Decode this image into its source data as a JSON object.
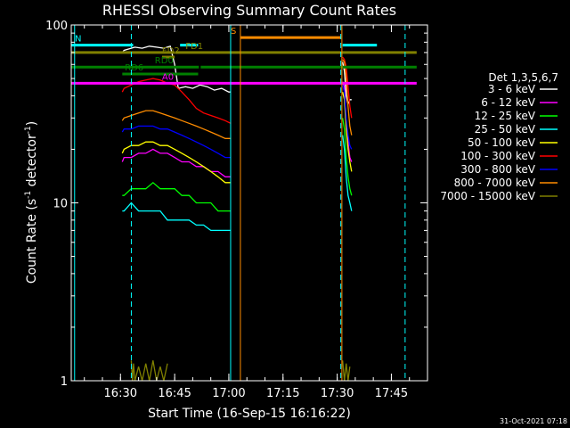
{
  "chart_data": {
    "type": "line",
    "title": "RHESSI Observing Summary Count Rates",
    "xlabel": "Start Time (16-Sep-15 16:16:22)",
    "ylabel_main": "Count Rate (s",
    "ylabel_sup1": "-1",
    "ylabel_mid": " detector",
    "ylabel_sup2": "-1",
    "ylabel_end": ")",
    "timestamp": "31-Oct-2021 07:18",
    "x_start_minutes": 976.37,
    "xlim_minutes": [
      976.37,
      1075
    ],
    "ylim": [
      1,
      100
    ],
    "y_scale": "log",
    "x_ticks": [
      {
        "label": "16:30",
        "minutes": 990
      },
      {
        "label": "16:45",
        "minutes": 1005
      },
      {
        "label": "17:00",
        "minutes": 1020
      },
      {
        "label": "17:15",
        "minutes": 1035
      },
      {
        "label": "17:30",
        "minutes": 1050
      },
      {
        "label": "17:45",
        "minutes": 1065
      }
    ],
    "y_ticks": [
      {
        "label": "1",
        "value": 1
      },
      {
        "label": "10",
        "value": 10
      },
      {
        "label": "100",
        "value": 100
      }
    ],
    "legend_title": "Det 1,3,5,6,7",
    "legend_placement": "right",
    "series": [
      {
        "name": "3 - 6 keV",
        "color": "#ffffff",
        "segments": [
          {
            "x": [
              990.5,
              991,
              992,
              994,
              996,
              998,
              1000,
              1002,
              1003.8,
              1005,
              1006,
              1008,
              1010,
              1012,
              1014,
              1016,
              1018,
              1020,
              1020.5
            ],
            "y": [
              70,
              72,
              73,
              75,
              74,
              76,
              75,
              74,
              76,
              60,
              44,
              45,
              44,
              46,
              45,
              43,
              44,
              42,
              42
            ]
          },
          {
            "x": [
              1051.5,
              1052,
              1052.5,
              1053,
              1053.5,
              1054
            ],
            "y": [
              62,
              55,
              40,
              36,
              38,
              38
            ]
          }
        ]
      },
      {
        "name": "6 - 12 keV",
        "color": "#ff00ff",
        "segments": [
          {
            "x": [
              990.5,
              991,
              993,
              995,
              997,
              999,
              1001,
              1003,
              1005,
              1007,
              1009,
              1011,
              1013,
              1015,
              1017,
              1019,
              1020.5
            ],
            "y": [
              17,
              18,
              18,
              19,
              19,
              20,
              19,
              19,
              18,
              17,
              17,
              16,
              16,
              15,
              15,
              14,
              14
            ]
          },
          {
            "x": [
              1051.5,
              1052,
              1052.5,
              1053,
              1053.5,
              1054
            ],
            "y": [
              48,
              45,
              30,
              22,
              18,
              17
            ]
          }
        ]
      },
      {
        "name": "12 - 25 keV",
        "color": "#00ff00",
        "segments": [
          {
            "x": [
              990.5,
              991,
              993,
              995,
              997,
              999,
              1001,
              1003,
              1005,
              1007,
              1009,
              1011,
              1013,
              1015,
              1017,
              1019,
              1020.5
            ],
            "y": [
              11,
              11,
              12,
              12,
              12,
              13,
              12,
              12,
              12,
              11,
              11,
              10,
              10,
              10,
              9,
              9,
              9
            ]
          },
          {
            "x": [
              1051.5,
              1052,
              1052.5,
              1053,
              1053.5,
              1054
            ],
            "y": [
              30,
              26,
              18,
              14,
              12,
              11
            ]
          }
        ]
      },
      {
        "name": "25 - 50 keV",
        "color": "#00ffff",
        "segments": [
          {
            "x": [
              990.5,
              991,
              993,
              995,
              997,
              999,
              1001,
              1003,
              1005,
              1007,
              1009,
              1011,
              1013,
              1015,
              1017,
              1019,
              1020.5
            ],
            "y": [
              9,
              9,
              10,
              9,
              9,
              9,
              9,
              8,
              8,
              8,
              8,
              7.5,
              7.5,
              7,
              7,
              7,
              7
            ]
          },
          {
            "x": [
              1051.5,
              1052,
              1052.5,
              1053,
              1053.5,
              1054
            ],
            "y": [
              24,
              20,
              14,
              11,
              10,
              9
            ]
          }
        ]
      },
      {
        "name": "50 - 100 keV",
        "color": "#ffff00",
        "segments": [
          {
            "x": [
              990.5,
              991,
              993,
              995,
              997,
              999,
              1001,
              1003,
              1005,
              1007,
              1009,
              1011,
              1013,
              1015,
              1017,
              1019,
              1020.5
            ],
            "y": [
              19,
              20,
              21,
              21,
              22,
              22,
              21,
              21,
              20,
              19,
              18,
              17,
              16,
              15,
              14,
              13,
              13
            ]
          },
          {
            "x": [
              1051.5,
              1052,
              1052.5,
              1053,
              1053.5,
              1054
            ],
            "y": [
              42,
              38,
              26,
              20,
              17,
              15
            ]
          }
        ]
      },
      {
        "name": "100 - 300 keV",
        "color": "#ff0000",
        "segments": [
          {
            "x": [
              990.5,
              991,
              993,
              995,
              997,
              999,
              1001,
              1003,
              1005,
              1007,
              1009,
              1011,
              1013,
              1015,
              1017,
              1019,
              1020.5
            ],
            "y": [
              42,
              44,
              46,
              48,
              49,
              50,
              49,
              47,
              46,
              42,
              38,
              34,
              32,
              31,
              30,
              29,
              28
            ]
          },
          {
            "x": [
              1051.5,
              1052,
              1052.5,
              1053,
              1053.5,
              1054
            ],
            "y": [
              66,
              64,
              58,
              45,
              35,
              30
            ]
          }
        ]
      },
      {
        "name": "300 - 800 keV",
        "color": "#0000ff",
        "segments": [
          {
            "x": [
              990.5,
              991,
              993,
              995,
              997,
              999,
              1001,
              1003,
              1005,
              1007,
              1009,
              1011,
              1013,
              1015,
              1017,
              1019,
              1020.5
            ],
            "y": [
              25,
              26,
              26,
              27,
              27,
              27,
              26,
              26,
              25,
              24,
              23,
              22,
              21,
              20,
              19,
              18,
              18
            ]
          },
          {
            "x": [
              1051.5,
              1052,
              1052.5,
              1053,
              1053.5,
              1054
            ],
            "y": [
              46,
              42,
              30,
              24,
              21,
              20
            ]
          }
        ]
      },
      {
        "name": "800 - 7000 keV",
        "color": "#ff8c00",
        "segments": [
          {
            "x": [
              990.5,
              991,
              993,
              995,
              997,
              999,
              1001,
              1003,
              1005,
              1007,
              1009,
              1011,
              1013,
              1015,
              1017,
              1019,
              1020.5
            ],
            "y": [
              29,
              30,
              31,
              32,
              33,
              33,
              32,
              31,
              30,
              29,
              28,
              27,
              26,
              25,
              24,
              23,
              23
            ]
          },
          {
            "x": [
              1051.5,
              1052,
              1052.5,
              1053,
              1053.5,
              1054
            ],
            "y": [
              64,
              62,
              50,
              35,
              27,
              24
            ]
          }
        ]
      },
      {
        "name": "7000 - 15000 keV",
        "color": "#808000",
        "segments": [
          {
            "x": [
              993,
              993.3,
              993.6,
              994,
              995,
              996,
              997,
              998,
              999,
              1000,
              1001,
              1002,
              1003
            ],
            "y": [
              1.3,
              1.0,
              1.25,
              1.0,
              1.2,
              1.0,
              1.25,
              1.0,
              1.3,
              1.0,
              1.2,
              1.0,
              1.25
            ]
          },
          {
            "x": [
              1051.5,
              1052,
              1052.5,
              1053,
              1053.5
            ],
            "y": [
              1.3,
              1.0,
              1.25,
              1.0,
              1.2
            ]
          }
        ]
      }
    ],
    "flags": [
      {
        "label": "N",
        "color": "#00ffff",
        "y": 77,
        "segments": [
          [
            976.37,
            993.5
          ],
          [
            1006.5,
            1011.5
          ],
          [
            1051.5,
            1061
          ]
        ]
      },
      {
        "label": "FD1",
        "color": "#808000",
        "y": 70,
        "label_x": 1008,
        "segments": [
          [
            976.37,
            1005
          ],
          [
            1005.2,
            1072
          ]
        ]
      },
      {
        "label": "FD2",
        "color": "#808000",
        "y": 66,
        "label_x": 1001.5,
        "segments": [
          [
            1001.5,
            1005
          ]
        ]
      },
      {
        "label": "RD0",
        "color": "#008000",
        "y": 58,
        "label_x": 999.5,
        "segments": [
          [
            976.37,
            1011.7
          ],
          [
            1012.2,
            1072
          ]
        ]
      },
      {
        "label": "RD6",
        "color": "#008000",
        "y": 53,
        "label_x": 991.2,
        "segments": [
          [
            990.5,
            1011.5
          ]
        ]
      },
      {
        "label": "A0",
        "color": "#ff00ff",
        "y": 47,
        "label_x": 1001.5,
        "segments": [
          [
            976.37,
            1072
          ]
        ]
      },
      {
        "label": "S",
        "color": "#ff8c00",
        "y": 85,
        "label_x": 1020.5,
        "segments": [
          [
            1023.2,
            1051
          ]
        ]
      }
    ],
    "vlines": [
      {
        "minutes": 977.3,
        "color": "#00ffff",
        "style": "solid"
      },
      {
        "minutes": 993,
        "color": "#00ffff",
        "style": "dashed"
      },
      {
        "minutes": 1020.5,
        "color": "#00ffff",
        "style": "solid"
      },
      {
        "minutes": 1023.2,
        "color": "#ff8c00",
        "style": "solid"
      },
      {
        "minutes": 1051,
        "color": "#00ffff",
        "style": "dashed"
      },
      {
        "minutes": 1051.3,
        "color": "#ff8c00",
        "style": "solid"
      },
      {
        "minutes": 1068.8,
        "color": "#00ffff",
        "style": "dashed"
      }
    ]
  }
}
